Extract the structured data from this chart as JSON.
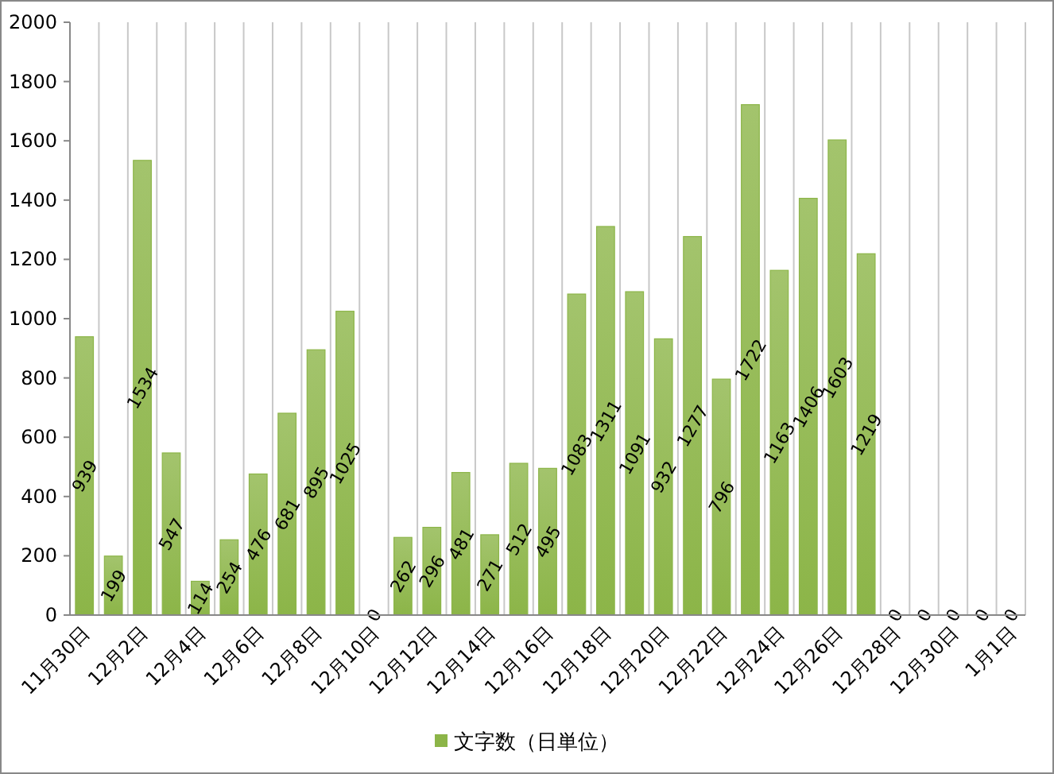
{
  "chart_data": {
    "type": "bar",
    "categories": [
      "11月30日",
      null,
      "12月2日",
      null,
      "12月4日",
      null,
      "12月6日",
      null,
      "12月8日",
      null,
      "12月10日",
      null,
      "12月12日",
      null,
      "12月14日",
      null,
      "12月16日",
      null,
      "12月18日",
      null,
      "12月20日",
      null,
      "12月22日",
      null,
      "12月24日",
      null,
      "12月26日",
      null,
      "12月28日",
      null,
      "12月30日",
      null,
      "1月1日"
    ],
    "series": [
      {
        "name": "文字数（日単位）",
        "color": "#8cb548",
        "values": [
          939,
          199,
          1534,
          547,
          114,
          254,
          476,
          681,
          895,
          1025,
          0,
          262,
          296,
          481,
          271,
          512,
          495,
          1083,
          1311,
          1091,
          932,
          1277,
          796,
          1722,
          1163,
          1406,
          1603,
          1219,
          0,
          0,
          0,
          0,
          0
        ]
      }
    ],
    "ylim": [
      0,
      2000
    ],
    "yticks": [
      0,
      200,
      400,
      600,
      800,
      1000,
      1200,
      1400,
      1600,
      1800,
      2000
    ],
    "grid": "x",
    "legend": "bottom",
    "data_labels": true
  }
}
